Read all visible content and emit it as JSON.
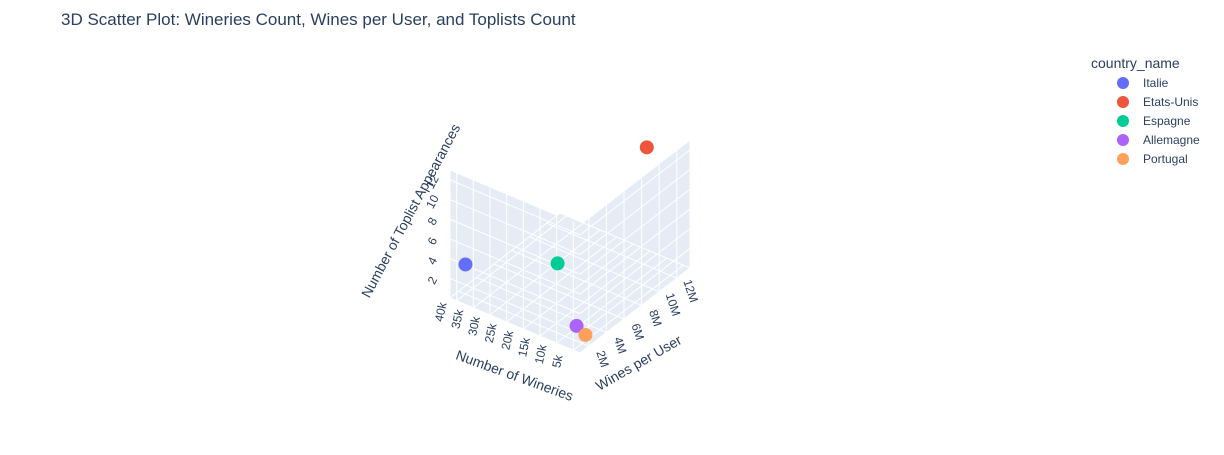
{
  "chart_data": {
    "type": "scatter",
    "title": "3D Scatter Plot: Wineries Count, Wines per User, and Toplists Count",
    "xlabel": "Number of Wineries",
    "ylabel": "Wines per User",
    "zlabel": "Number of Toplist Appearances",
    "x_ticks": [
      "5k",
      "10k",
      "15k",
      "20k",
      "25k",
      "30k",
      "35k",
      "40k"
    ],
    "y_ticks": [
      "2M",
      "4M",
      "6M",
      "8M",
      "10M",
      "12M"
    ],
    "z_ticks": [
      "2",
      "4",
      "6",
      "8",
      "10",
      "12"
    ],
    "xlim": [
      3000,
      42000
    ],
    "ylim": [
      1000000,
      13500000
    ],
    "zlim": [
      0,
      13
    ],
    "legend_title": "country_name",
    "legend_position": "top-right",
    "series": [
      {
        "name": "Italie",
        "color": "#636efa",
        "x": 40000,
        "y": 2000000,
        "z": 3
      },
      {
        "name": "Etats-Unis",
        "color": "#ef553b",
        "x": 12000,
        "y": 12000000,
        "z": 12
      },
      {
        "name": "Espagne",
        "color": "#00cc96",
        "x": 15000,
        "y": 3000000,
        "z": 6
      },
      {
        "name": "Allemagne",
        "color": "#ab63fa",
        "x": 8000,
        "y": 2500000,
        "z": 1
      },
      {
        "name": "Portugal",
        "color": "#ffa15a",
        "x": 4000,
        "y": 2000000,
        "z": 1
      }
    ],
    "background_color": "#e5ecf6",
    "grid": true
  }
}
